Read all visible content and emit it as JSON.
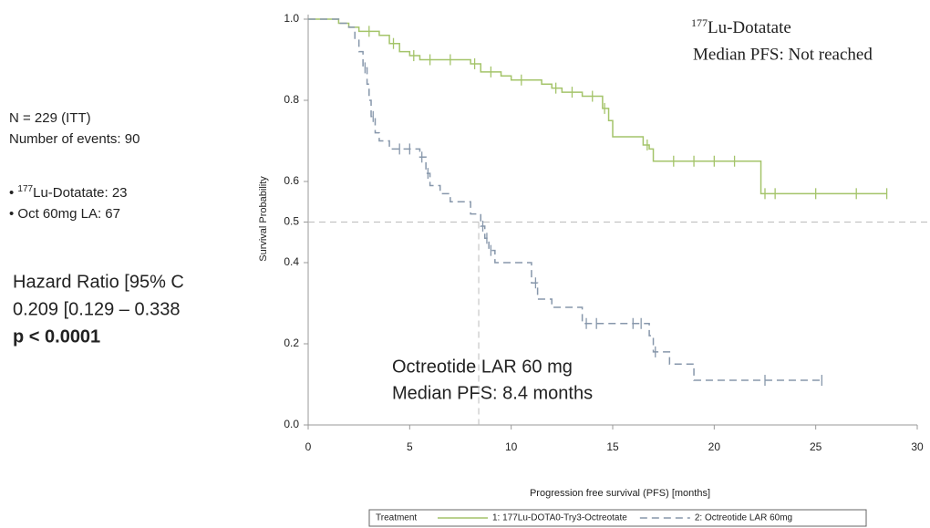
{
  "chart_data": {
    "type": "line",
    "step": true,
    "y_label": "Survival Probability",
    "x_label": "Progression free survival (PFS) [months]",
    "xlim": [
      0,
      30
    ],
    "xticks": [
      0,
      5,
      10,
      15,
      20,
      25,
      30
    ],
    "ylim": [
      0,
      1
    ],
    "yticks": [
      {
        "value": 0,
        "label": "0.0"
      },
      0.2,
      0.4,
      0.5,
      0.6,
      0.8,
      {
        "value": 1,
        "label": "1.0"
      }
    ],
    "hline": 0.5,
    "vline": 8.4,
    "legend_title": "Treatment",
    "series": [
      {
        "name": "1: 177Lu-DOTA0-Try3-Octreotate",
        "color": "#a4c46a",
        "dashed": false,
        "x": [
          0,
          1.5,
          2,
          2.5,
          3.5,
          4,
          4.5,
          5,
          5.5,
          8,
          8.5,
          9.5,
          10,
          11.5,
          12,
          12.5,
          13.5,
          14.5,
          14.8,
          15,
          16.5,
          16.8,
          17,
          22.3,
          28.5
        ],
        "values": [
          1,
          0.99,
          0.98,
          0.97,
          0.96,
          0.94,
          0.92,
          0.91,
          0.9,
          0.89,
          0.87,
          0.86,
          0.85,
          0.84,
          0.83,
          0.82,
          0.81,
          0.78,
          0.75,
          0.71,
          0.69,
          0.68,
          0.65,
          0.57,
          0.57
        ],
        "censor_x": [
          3,
          4.2,
          5.2,
          6,
          7,
          8.2,
          9,
          10.5,
          12.2,
          13,
          14,
          14.6,
          16.7,
          18,
          19,
          20,
          21,
          22.5,
          23,
          25,
          27,
          28.5
        ],
        "censor_values": [
          0.97,
          0.94,
          0.91,
          0.9,
          0.9,
          0.89,
          0.87,
          0.85,
          0.83,
          0.82,
          0.81,
          0.78,
          0.69,
          0.65,
          0.65,
          0.65,
          0.65,
          0.57,
          0.57,
          0.57,
          0.57,
          0.57
        ]
      },
      {
        "name": "2: Octreotide LAR 60mg",
        "color": "#8797ab",
        "dashed": true,
        "x": [
          0,
          1.5,
          2,
          2.3,
          2.5,
          2.7,
          2.9,
          3,
          3.1,
          3.3,
          3.5,
          4,
          5.5,
          5.8,
          6,
          6.5,
          7,
          8,
          8.5,
          8.7,
          8.9,
          9.2,
          11,
          11.3,
          12,
          13.5,
          16.8,
          17,
          17.8,
          19,
          25.3
        ],
        "values": [
          1,
          0.99,
          0.98,
          0.95,
          0.92,
          0.88,
          0.84,
          0.8,
          0.76,
          0.72,
          0.7,
          0.68,
          0.66,
          0.62,
          0.59,
          0.57,
          0.55,
          0.52,
          0.49,
          0.46,
          0.43,
          0.4,
          0.35,
          0.31,
          0.29,
          0.25,
          0.22,
          0.18,
          0.15,
          0.11,
          0.11
        ],
        "censor_x": [
          2.8,
          3.2,
          4.5,
          5,
          5.6,
          5.9,
          8.6,
          8.8,
          9,
          11.2,
          13.7,
          14.2,
          16,
          16.4,
          17.1,
          22.5,
          25.3
        ],
        "censor_values": [
          0.88,
          0.76,
          0.68,
          0.68,
          0.66,
          0.62,
          0.49,
          0.46,
          0.43,
          0.35,
          0.25,
          0.25,
          0.25,
          0.25,
          0.18,
          0.11,
          0.11
        ]
      }
    ],
    "annotations": [
      {
        "sup": "177",
        "text": "Lu-Dotatate"
      },
      {
        "text": "Median PFS: Not reached"
      },
      {
        "text": "Octreotide LAR 60 mg"
      },
      {
        "text": "Median PFS: 8.4 months"
      }
    ],
    "side_notes": [
      {
        "text": "N = 229 (ITT)"
      },
      {
        "text": "Number of events: 90"
      },
      {
        "sup": "177",
        "text": "Lu-Dotatate: 23"
      },
      {
        "text": "Oct 60mg LA: 67"
      },
      {
        "text": "Hazard Ratio [95% C"
      },
      {
        "text": "0.209  [0.129 – 0.338"
      },
      {
        "text": "p < 0.0001"
      }
    ]
  }
}
